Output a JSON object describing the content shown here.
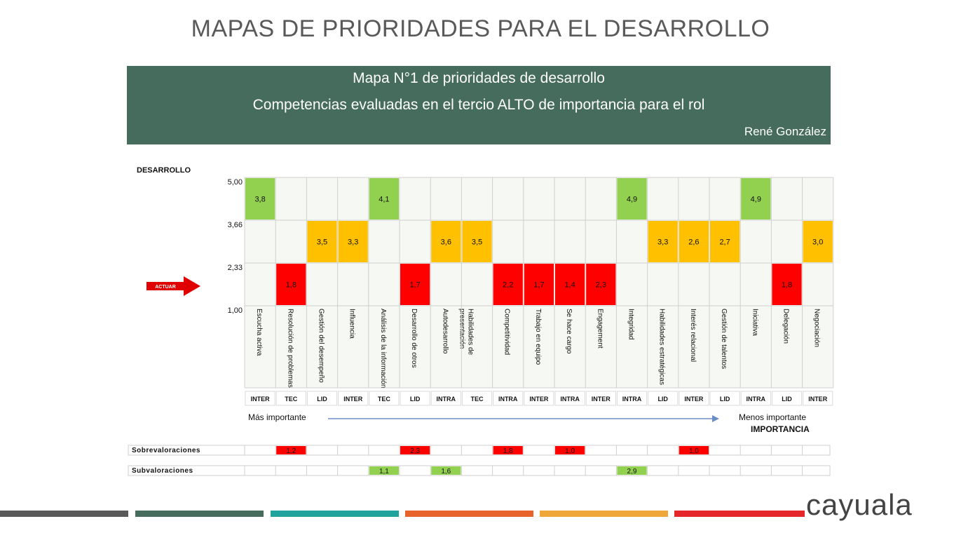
{
  "slide_title": "MAPAS DE PRIORIDADES PARA EL DESARROLLO",
  "header": {
    "line1": "Mapa N°1 de prioridades de desarrollo",
    "line2": "Competencias evaluadas en el tercio ALTO de importancia para el rol",
    "line3": "René González"
  },
  "chart_data": {
    "type": "heatmap",
    "ylabel": "DESARROLLO",
    "y_ticks": [
      "5,00",
      "3,66",
      "2,33",
      "1,00"
    ],
    "categories": [
      "Escucha activa",
      "Resolución de problemas",
      "Gestión del desempeño",
      "Influencia",
      "Análisis de la información",
      "Desarrollo de otros",
      "Autodesarrollo",
      "Habilidades de presentación",
      "Competitividad",
      "Trabajo en equipo",
      "Se hace cargo",
      "Engagement",
      "Integridad",
      "Habilidades estratégicas",
      "Interés relacional",
      "Gestión de talentos",
      "Iniciativa",
      "Delegación",
      "Negociación"
    ],
    "types": [
      "INTER",
      "TEC",
      "LID",
      "INTER",
      "TEC",
      "LID",
      "INTRA",
      "TEC",
      "INTRA",
      "INTER",
      "INTRA",
      "INTER",
      "INTRA",
      "LID",
      "INTER",
      "LID",
      "INTRA",
      "LID",
      "INTER"
    ],
    "values": [
      3.8,
      1.8,
      3.5,
      3.3,
      4.1,
      1.7,
      3.6,
      3.5,
      2.2,
      1.7,
      1.4,
      2.3,
      4.9,
      3.3,
      2.6,
      2.7,
      4.9,
      1.8,
      3.0
    ],
    "value_labels": [
      "3,8",
      "1,8",
      "3,5",
      "3,3",
      "4,1",
      "1,7",
      "3,6",
      "3,5",
      "2,2",
      "1,7",
      "1,4",
      "2,3",
      "4,9",
      "3,3",
      "2,6",
      "2,7",
      "4,9",
      "1,8",
      "3,0"
    ],
    "bands": [
      2,
      0,
      1,
      1,
      2,
      0,
      1,
      1,
      0,
      0,
      0,
      0,
      2,
      1,
      1,
      1,
      2,
      0,
      1
    ],
    "band_colors": [
      "#ff0000",
      "#ffc000",
      "#92d050"
    ],
    "x_left_label": "Más importante",
    "x_right_label": "Menos importante",
    "xlabel": "IMPORTANCIA",
    "action_label": "ACTUAR",
    "sobrevaloraciones": {
      "label": "Sobrevaloraciones",
      "values": [
        "",
        "1,2",
        "",
        "",
        "",
        "2,3",
        "",
        "",
        "1,8",
        "",
        "1,0",
        "",
        "",
        "",
        "1,0",
        "",
        "",
        "",
        ""
      ],
      "color": "#ff0000"
    },
    "subvaloraciones": {
      "label": "Subvaloraciones",
      "values": [
        "",
        "",
        "",
        "",
        "1,1",
        "",
        "1,6",
        "",
        "",
        "",
        "",
        "",
        "2,9",
        "",
        "",
        "",
        "",
        "",
        ""
      ],
      "color": "#92d050"
    }
  },
  "footer_colors": [
    "#595959",
    "#456c5c",
    "#1fa39c",
    "#e8622c",
    "#f0a73a",
    "#e5262a"
  ],
  "logo_text": "cayuala"
}
